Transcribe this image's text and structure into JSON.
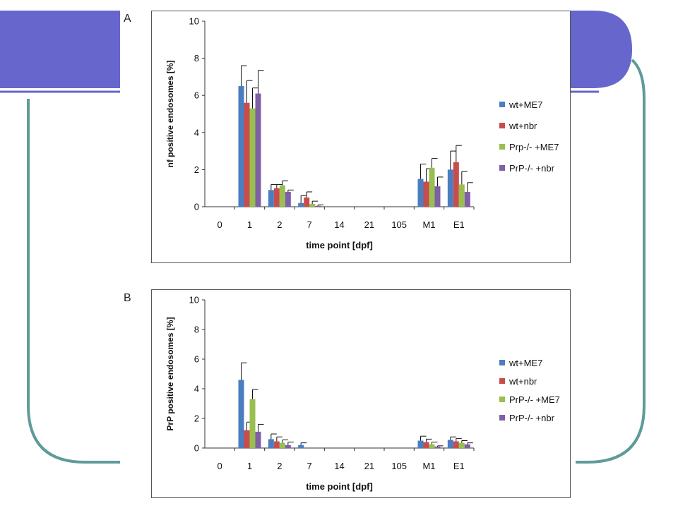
{
  "colors": {
    "slide_accent": "#6666cc",
    "slide_line": "#5f9b98",
    "series": [
      "#4a7ec0",
      "#c94c4c",
      "#98bf4f",
      "#7f5fa6"
    ]
  },
  "chart_data": [
    {
      "id": "A",
      "panel_label": "A",
      "type": "bar",
      "xlabel": "time point [dpf]",
      "ylabel": "nf positive endosomes [%]",
      "ylim": [
        0,
        10
      ],
      "yticks": [
        0,
        2,
        4,
        6,
        8,
        10
      ],
      "categories": [
        "0",
        "1",
        "2",
        "7",
        "14",
        "21",
        "105",
        "M1",
        "E1"
      ],
      "legend_position": "right",
      "series": [
        {
          "name": "wt+ME7",
          "values": [
            0,
            6.5,
            0.9,
            0.2,
            0,
            0,
            0,
            1.5,
            2.0
          ],
          "errors": [
            0,
            1.1,
            0.3,
            0.4,
            0,
            0,
            0,
            0.8,
            1.0
          ]
        },
        {
          "name": "wt+nbr",
          "values": [
            0,
            5.6,
            1.0,
            0.5,
            0,
            0,
            0,
            1.35,
            2.4
          ],
          "errors": [
            0,
            1.2,
            0.2,
            0.3,
            0,
            0,
            0,
            0.7,
            0.9
          ]
        },
        {
          "name": "Prp-/- +ME7",
          "values": [
            0,
            5.3,
            1.15,
            0.15,
            0,
            0,
            0,
            2.1,
            1.2
          ],
          "errors": [
            0,
            1.1,
            0.25,
            0.15,
            0,
            0,
            0,
            0.5,
            0.7
          ]
        },
        {
          "name": "PrP-/- +nbr",
          "values": [
            0,
            6.1,
            0.8,
            0.05,
            0,
            0,
            0,
            1.1,
            0.8
          ],
          "errors": [
            0,
            1.25,
            0.1,
            0.05,
            0,
            0,
            0,
            0.5,
            0.5
          ]
        }
      ]
    },
    {
      "id": "B",
      "panel_label": "B",
      "type": "bar",
      "xlabel": "time point [dpf]",
      "ylabel": "PrP positive endosomes [%]",
      "ylim": [
        0,
        10
      ],
      "yticks": [
        0,
        2,
        4,
        6,
        8,
        10
      ],
      "categories": [
        "0",
        "1",
        "2",
        "7",
        "14",
        "21",
        "105",
        "M1",
        "E1"
      ],
      "legend_position": "right",
      "series": [
        {
          "name": "wt+ME7",
          "values": [
            0,
            4.6,
            0.6,
            0.2,
            0,
            0,
            0,
            0.5,
            0.55
          ],
          "errors": [
            0,
            1.15,
            0.35,
            0.15,
            0,
            0,
            0,
            0.3,
            0.2
          ]
        },
        {
          "name": "wt+nbr",
          "values": [
            0,
            1.2,
            0.45,
            0,
            0,
            0,
            0,
            0.4,
            0.45
          ],
          "errors": [
            0,
            0.55,
            0.3,
            0,
            0,
            0,
            0,
            0.2,
            0.2
          ]
        },
        {
          "name": "PrP-/- +ME7",
          "values": [
            0,
            3.3,
            0.35,
            0,
            0,
            0,
            0,
            0.25,
            0.35
          ],
          "errors": [
            0,
            0.65,
            0.2,
            0,
            0,
            0,
            0,
            0.15,
            0.15
          ]
        },
        {
          "name": "PrP-/- +nbr",
          "values": [
            0,
            1.1,
            0.2,
            0,
            0,
            0,
            0,
            0.1,
            0.25
          ],
          "errors": [
            0,
            0.5,
            0.2,
            0,
            0,
            0,
            0,
            0.05,
            0.1
          ]
        }
      ]
    }
  ]
}
